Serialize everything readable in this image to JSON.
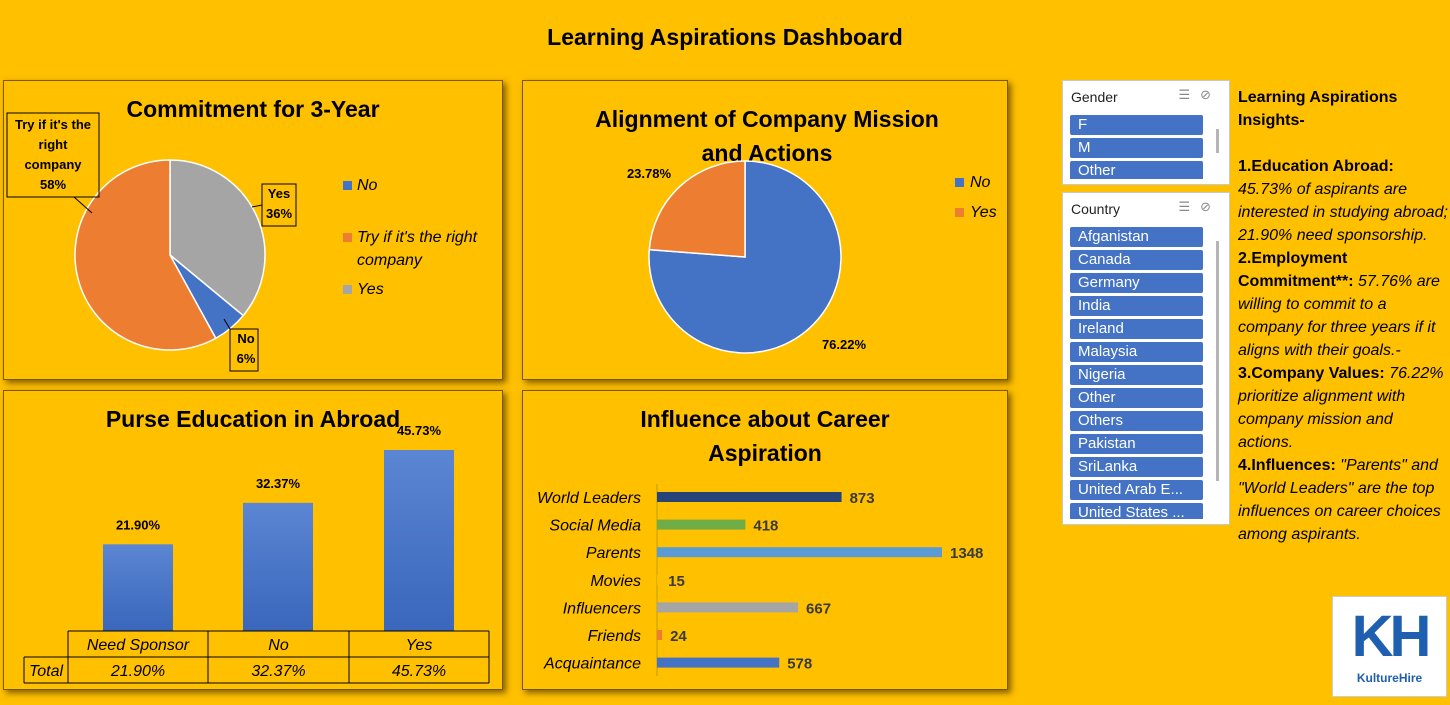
{
  "dashboard_title": "Learning Aspirations Dashboard",
  "colors": {
    "background": "#FFC000",
    "blue": "#4472C4",
    "orange": "#ED7D31",
    "gray": "#A5A5A5",
    "navy": "#264478",
    "green": "#70AD47",
    "lightblue": "#5B9BD5"
  },
  "chart_data": [
    {
      "type": "pie",
      "title": "Commitment for 3-Year",
      "categories": [
        "No",
        "Try if it's the right company",
        "Yes"
      ],
      "values": [
        6,
        58,
        36
      ],
      "data_labels": [
        "No\n6%",
        "Try if it's the right company\n58%",
        "Yes\n36%"
      ],
      "legend": [
        "No",
        "Try if it's the right company",
        "Yes"
      ],
      "legend_position": "right"
    },
    {
      "type": "pie",
      "title": "Alignment of Company Mission and Actions",
      "categories": [
        "No",
        "Yes"
      ],
      "values": [
        76.22,
        23.78
      ],
      "data_labels": [
        "76.22%",
        "23.78%"
      ],
      "legend": [
        "No",
        "Yes"
      ],
      "legend_position": "right"
    },
    {
      "type": "bar",
      "title": "Purse Education in Abroad",
      "categories": [
        "Need Sponsor",
        "No",
        "Yes"
      ],
      "values": [
        21.9,
        32.37,
        45.73
      ],
      "data_labels": [
        "21.90%",
        "32.37%",
        "45.73%"
      ],
      "table": {
        "row_label": "Total",
        "cells": [
          "21.90%",
          "32.37%",
          "45.73%"
        ]
      }
    },
    {
      "type": "bar",
      "orientation": "horizontal",
      "title": "Influence about Career Aspiration",
      "categories": [
        "World Leaders",
        "Social Media",
        "Parents",
        "Movies",
        "Influencers",
        "Friends",
        "Acquaintance"
      ],
      "values": [
        873,
        418,
        1348,
        15,
        667,
        24,
        578
      ],
      "data_labels": [
        "873",
        "418",
        "1348",
        "15",
        "667",
        "24",
        "578"
      ]
    }
  ],
  "gender_slicer": {
    "header": "Gender",
    "items": [
      "F",
      "M",
      "Other"
    ]
  },
  "country_slicer": {
    "header": "Country",
    "items": [
      "Afganistan",
      "Canada",
      "Germany",
      "India",
      "Ireland",
      "Malaysia",
      "Nigeria",
      "Other",
      "Others",
      "Pakistan",
      "SriLanka",
      "United Arab E...",
      "United States ..."
    ]
  },
  "insights": {
    "heading": "Learning Aspirations Insights-",
    "p1_bold": "1.Education Abroad:",
    "p1_text": "45.73% of aspirants are interested in studying abroad; 21.90% need sponsorship.",
    "p2_bold": "2.Employment Commitment**:",
    "p2_text": "57.76% are willing to commit to a company for three years if it aligns with their goals.-",
    "p3_bold": "3.Company Values:",
    "p3_text": "76.22% prioritize alignment with company mission and actions.",
    "p4_bold": "4.Influences:",
    "p4_text": "\"Parents\" and \"World Leaders\" are the top influences on career choices among aspirants."
  },
  "logo": {
    "mark": "KH",
    "name": "KultureHire"
  }
}
